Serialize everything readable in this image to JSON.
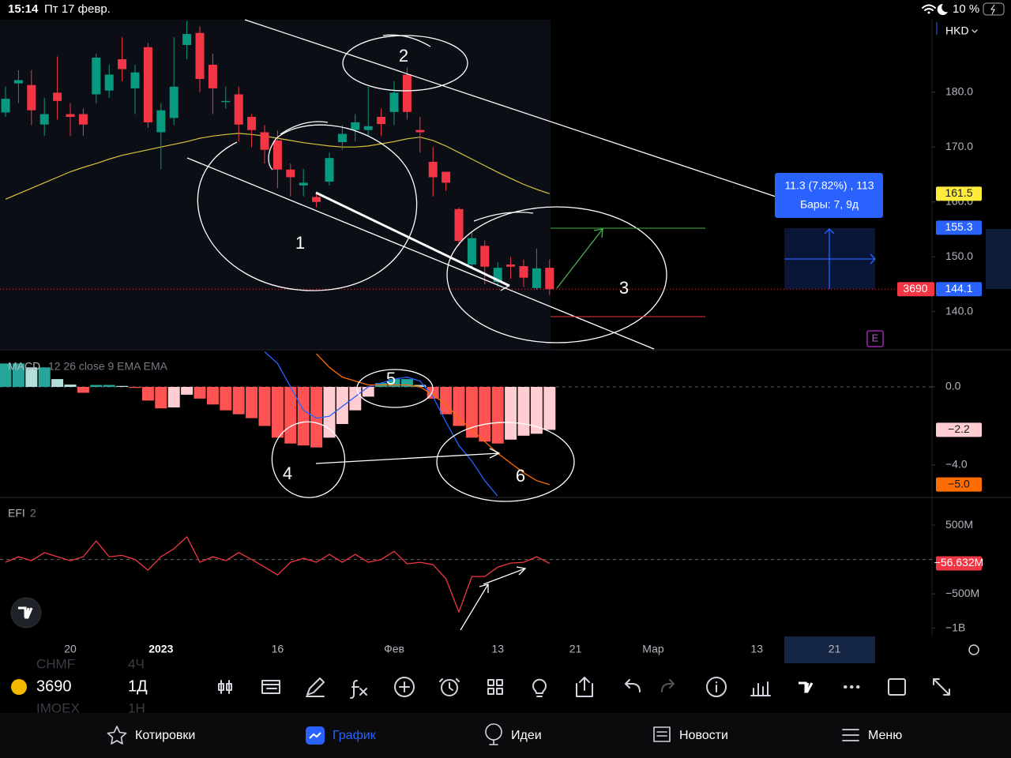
{
  "status_bar": {
    "time": "15:14",
    "date": "Пт 17 февр.",
    "battery": "10 %"
  },
  "currency": "HKD",
  "annotations": [
    "1",
    "2",
    "3",
    "4",
    "5",
    "6"
  ],
  "chart_data": [
    {
      "type": "candlestick",
      "symbol": "3690",
      "up_color": "#089981",
      "down_color": "#f23645",
      "open": [
        176.3,
        181.6,
        181.3,
        174.1,
        179.9,
        176,
        176,
        179.6,
        180.3,
        186,
        180.7,
        188.2,
        172.7,
        175.3,
        188.6,
        190.8,
        185,
        178.2,
        179.6,
        175.5,
        172.7,
        171.2,
        165.9,
        163,
        160.9,
        163.7,
        170.9,
        173.1,
        173.1,
        175.5,
        176.4,
        183.2,
        173.1,
        167.3,
        165.5,
        158.7,
        148.6,
        152,
        145.4,
        148.6,
        148.3,
        144.3,
        148
      ],
      "high": [
        181,
        184,
        184,
        179,
        186.5,
        178,
        177,
        187,
        185,
        190,
        185,
        189,
        178,
        190,
        193,
        192,
        187,
        181,
        181,
        176,
        174,
        173,
        167,
        166,
        161.5,
        169,
        174,
        176,
        181,
        177,
        182,
        184.5,
        175.5,
        170,
        165.5,
        159,
        154.5,
        153,
        149,
        150,
        149.5,
        151.5,
        149.5
      ],
      "low": [
        175.5,
        178,
        174,
        172,
        175,
        172,
        172,
        178,
        179,
        182,
        176,
        173.5,
        166,
        174,
        186,
        180,
        176,
        177,
        171,
        170,
        167,
        162.5,
        161,
        161,
        159,
        163,
        169.5,
        171,
        172,
        172,
        174,
        175,
        169,
        161,
        162,
        152,
        148,
        145,
        144.5,
        146,
        144.5,
        144,
        143
      ],
      "close": [
        178.8,
        182.2,
        176.7,
        176,
        178.4,
        175.5,
        174.1,
        186.3,
        183.2,
        184.2,
        183.6,
        174.5,
        176.7,
        181,
        190.6,
        182.4,
        180.7,
        178.4,
        174.1,
        173.1,
        169.5,
        165.9,
        164.5,
        163.5,
        160,
        168,
        172.4,
        174.5,
        173.8,
        174.2,
        179.9,
        176.4,
        172.7,
        164.5,
        163.5,
        152.9,
        153.4,
        148.2,
        148,
        148.2,
        146.2,
        147.9,
        144.1
      ],
      "ma": {
        "color": "#d8c53a",
        "values": [
          160.5,
          161.5,
          162.5,
          163.5,
          164.5,
          165.5,
          166.3,
          167,
          167.8,
          168.5,
          169,
          169.5,
          170,
          170.5,
          171,
          171.6,
          172,
          172.3,
          172.5,
          172.3,
          172,
          171.6,
          171.2,
          170.8,
          170.5,
          170.2,
          170,
          170,
          170.2,
          170.6,
          171,
          171.5,
          171.8,
          171.2,
          170.2,
          169,
          167.8,
          166.6,
          165.4,
          164.3,
          163.2,
          162.3,
          161.5
        ]
      },
      "ylim": [
        133.2,
        193.2
      ],
      "yticks": [
        {
          "value": 180,
          "label": "180.0"
        },
        {
          "value": 170,
          "label": "170.0"
        },
        {
          "value": 160,
          "label": "160.0"
        },
        {
          "value": 150,
          "label": "150.0"
        },
        {
          "value": 140,
          "label": "140.0"
        }
      ],
      "xticks": [
        {
          "value": 5,
          "label": "20"
        },
        {
          "value": 12,
          "label": "2023"
        },
        {
          "value": 21,
          "label": "16"
        },
        {
          "value": 30,
          "label": "Фев"
        },
        {
          "value": 38,
          "label": "13"
        },
        {
          "value": 44,
          "label": "21"
        },
        {
          "value": 50,
          "label": "Мар"
        },
        {
          "value": 58,
          "label": "13"
        },
        {
          "value": 64,
          "label": "21"
        }
      ],
      "measure": {
        "label": "11.3 (7.82%) , 113",
        "bars": "Бары: 7, 9д",
        "level": 155.3
      }
    },
    {
      "type": "bar",
      "title": "MACD",
      "params": "12 26 close 9 EMA EMA",
      "values": [
        1.2,
        1.2,
        1.0,
        1.0,
        0.4,
        0.12,
        -0.3,
        0.1,
        0.1,
        0.05,
        -0.05,
        -0.7,
        -1.1,
        -1.05,
        -0.4,
        -0.6,
        -0.9,
        -1.2,
        -1.4,
        -1.6,
        -2.0,
        -2.6,
        -2.9,
        -3.0,
        -3.1,
        -2.6,
        -1.9,
        -1.2,
        -0.5,
        0.2,
        0.4,
        0.4,
        0.1,
        -0.6,
        -1.4,
        -2.0,
        -2.6,
        -2.8,
        -2.9,
        -2.7,
        -2.5,
        -2.4,
        -2.2
      ],
      "value_labels": [
        null,
        null,
        null,
        null,
        null,
        null,
        null,
        null,
        null,
        null,
        null,
        null,
        null,
        null,
        null,
        null,
        null,
        null,
        null,
        null,
        null,
        null,
        null,
        null,
        null,
        null,
        null,
        null,
        null,
        null,
        null,
        null,
        null,
        null,
        null,
        null,
        null,
        null,
        null,
        null,
        null,
        null,
        "−2.2"
      ],
      "series": [
        {
          "name": "MACD",
          "color": "#2962ff",
          "values": [
            null,
            null,
            null,
            null,
            null,
            null,
            null,
            null,
            null,
            null,
            null,
            null,
            null,
            null,
            null,
            null,
            null,
            null,
            null,
            null,
            1.8,
            1.2,
            0.0,
            -1.2,
            -1.6,
            -1.5,
            -1.0,
            -0.5,
            0.0,
            0.2,
            0.4,
            0.5,
            0.3,
            -0.5,
            -1.8,
            -3.0,
            -3.8,
            -4.8,
            -5.6,
            null,
            null,
            null,
            null
          ]
        },
        {
          "name": "Signal",
          "color": "#ff6d00",
          "values": [
            null,
            null,
            null,
            null,
            null,
            null,
            null,
            null,
            null,
            null,
            null,
            null,
            null,
            null,
            null,
            null,
            null,
            null,
            null,
            null,
            null,
            null,
            null,
            null,
            1.7,
            1.0,
            0.5,
            0.3,
            0.1,
            0.1,
            0.1,
            0.1,
            0.0,
            -0.4,
            -0.9,
            -1.6,
            -2.2,
            -2.8,
            -3.4,
            -3.9,
            -4.4,
            -4.8,
            -5.0
          ],
          "value_labels": [
            null,
            null,
            null,
            null,
            null,
            null,
            null,
            null,
            null,
            null,
            null,
            null,
            null,
            null,
            null,
            null,
            null,
            null,
            null,
            null,
            null,
            null,
            null,
            null,
            null,
            null,
            null,
            null,
            null,
            null,
            null,
            null,
            null,
            null,
            null,
            null,
            null,
            null,
            null,
            null,
            null,
            null,
            "−5.0"
          ]
        }
      ],
      "ylim": [
        -5.58,
        1.82
      ],
      "yticks": [
        {
          "value": 0,
          "label": "0.0"
        },
        {
          "value": -4,
          "label": "−4.0"
        }
      ]
    },
    {
      "type": "line",
      "title": "EFI",
      "params": "2",
      "color": "#f23645",
      "values": [
        -40,
        40,
        -17,
        100,
        40,
        -17,
        40,
        270,
        40,
        60,
        0,
        -155,
        40,
        155,
        330,
        -40,
        40,
        -17,
        100,
        0,
        -110,
        -225,
        -40,
        17,
        -40,
        75,
        -40,
        75,
        -40,
        0,
        120,
        -63,
        -40,
        -75,
        -280,
        -765,
        -247,
        -247,
        -110,
        -52,
        -40,
        40,
        -56.632
      ],
      "value_labels": [
        null,
        null,
        null,
        null,
        null,
        null,
        null,
        null,
        null,
        null,
        null,
        null,
        null,
        null,
        null,
        null,
        null,
        null,
        null,
        null,
        null,
        null,
        null,
        null,
        null,
        null,
        null,
        null,
        null,
        null,
        null,
        null,
        null,
        null,
        null,
        null,
        null,
        null,
        null,
        null,
        null,
        null,
        "−56.632M"
      ],
      "hline": 0,
      "ylim": [
        -1050,
        880
      ],
      "yticks": [
        {
          "value": 500,
          "label": "500M"
        },
        {
          "value": -500,
          "label": "−500M"
        },
        {
          "value": -1000,
          "label": "−1B"
        }
      ]
    }
  ],
  "toolbar": {
    "symbol": "3690",
    "interval": "1Д",
    "ghost": [
      "CHMF",
      "4Ч",
      "IMOEX",
      "1Н"
    ]
  },
  "nav": [
    "Котировки",
    "График",
    "Идеи",
    "Новости",
    "Меню"
  ]
}
